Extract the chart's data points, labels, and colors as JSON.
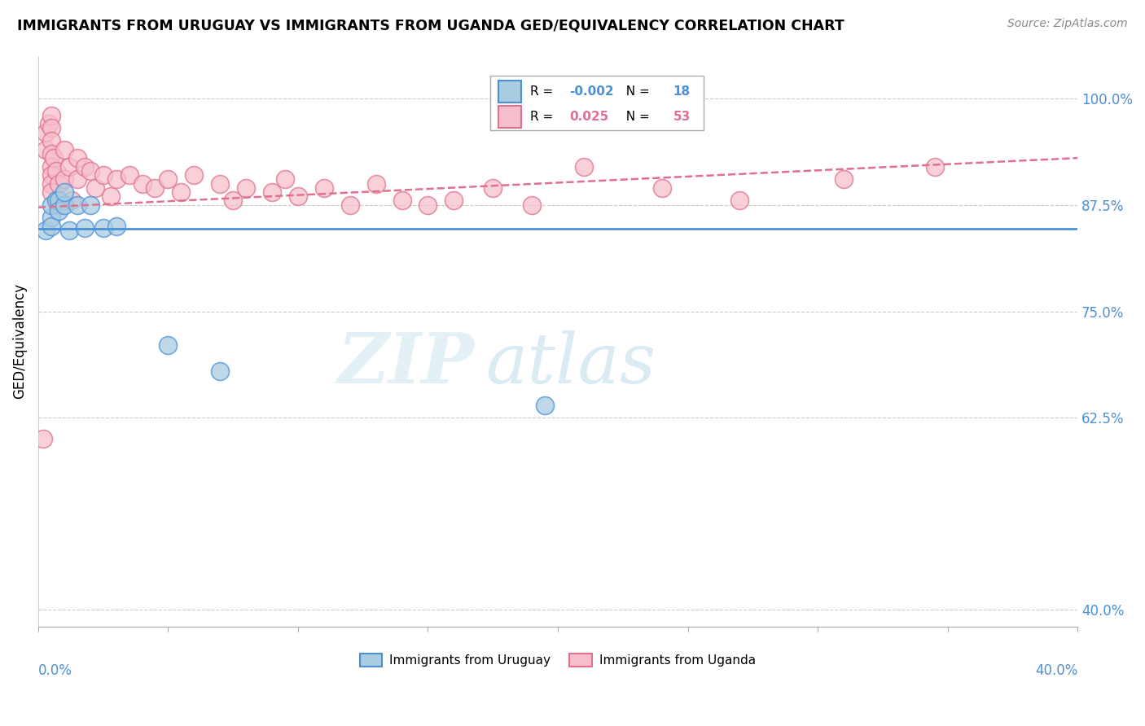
{
  "title": "IMMIGRANTS FROM URUGUAY VS IMMIGRANTS FROM UGANDA GED/EQUIVALENCY CORRELATION CHART",
  "source": "Source: ZipAtlas.com",
  "ylabel": "GED/Equivalency",
  "yticks": [
    0.4,
    0.625,
    0.75,
    0.875,
    1.0
  ],
  "ytick_labels": [
    "40.0%",
    "62.5%",
    "75.0%",
    "87.5%",
    "100.0%"
  ],
  "xlim": [
    0.0,
    0.4
  ],
  "ylim": [
    0.38,
    1.05
  ],
  "legend_R_uruguay": "-0.002",
  "legend_N_uruguay": "18",
  "legend_R_uganda": "0.025",
  "legend_N_uganda": "53",
  "color_uruguay_fill": "#a8cce0",
  "color_uganda_fill": "#f7bfcc",
  "color_trend_uruguay": "#4a90d9",
  "color_trend_uganda": "#e07090",
  "watermark_zip": "ZIP",
  "watermark_atlas": "atlas",
  "uruguay_x": [
    0.003,
    0.005,
    0.005,
    0.005,
    0.007,
    0.008,
    0.008,
    0.01,
    0.01,
    0.012,
    0.015,
    0.018,
    0.02,
    0.025,
    0.03,
    0.05,
    0.07,
    0.195
  ],
  "uruguay_y": [
    0.845,
    0.86,
    0.85,
    0.875,
    0.88,
    0.88,
    0.868,
    0.875,
    0.89,
    0.845,
    0.875,
    0.848,
    0.875,
    0.848,
    0.85,
    0.71,
    0.68,
    0.64
  ],
  "uganda_x": [
    0.002,
    0.003,
    0.003,
    0.004,
    0.005,
    0.005,
    0.005,
    0.005,
    0.005,
    0.005,
    0.005,
    0.005,
    0.006,
    0.007,
    0.008,
    0.008,
    0.01,
    0.01,
    0.012,
    0.013,
    0.015,
    0.015,
    0.018,
    0.02,
    0.022,
    0.025,
    0.028,
    0.03,
    0.035,
    0.04,
    0.045,
    0.05,
    0.055,
    0.06,
    0.07,
    0.075,
    0.08,
    0.09,
    0.095,
    0.1,
    0.11,
    0.12,
    0.13,
    0.14,
    0.15,
    0.16,
    0.175,
    0.19,
    0.21,
    0.24,
    0.27,
    0.31,
    0.345
  ],
  "uganda_y": [
    0.6,
    0.96,
    0.94,
    0.97,
    0.98,
    0.965,
    0.95,
    0.935,
    0.92,
    0.91,
    0.9,
    0.89,
    0.93,
    0.915,
    0.9,
    0.875,
    0.94,
    0.905,
    0.92,
    0.88,
    0.93,
    0.905,
    0.92,
    0.915,
    0.895,
    0.91,
    0.885,
    0.905,
    0.91,
    0.9,
    0.895,
    0.905,
    0.89,
    0.91,
    0.9,
    0.88,
    0.895,
    0.89,
    0.905,
    0.885,
    0.895,
    0.875,
    0.9,
    0.88,
    0.875,
    0.88,
    0.895,
    0.875,
    0.92,
    0.895,
    0.88,
    0.905,
    0.92
  ],
  "trend_uruguay_x0": 0.0,
  "trend_uruguay_y0": 0.847,
  "trend_uruguay_x1": 0.4,
  "trend_uruguay_y1": 0.847,
  "trend_uganda_x0": 0.0,
  "trend_uganda_y0": 0.872,
  "trend_uganda_x1": 0.4,
  "trend_uganda_y1": 0.93
}
